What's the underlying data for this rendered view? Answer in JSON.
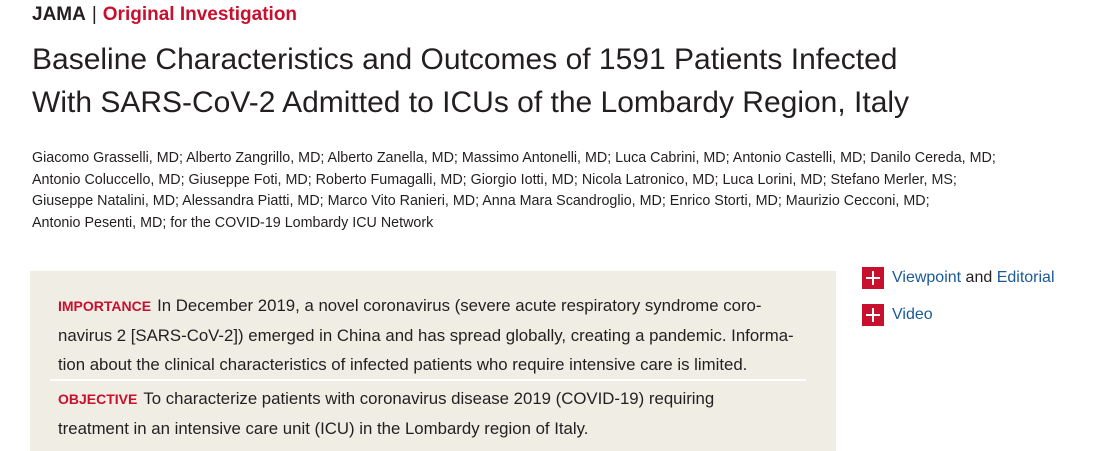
{
  "header": {
    "journal": "JAMA",
    "separator": "|",
    "section": "Original Investigation"
  },
  "title": {
    "lines": [
      "Baseline Characteristics and Outcomes of 1591 Patients Infected",
      "With SARS-CoV-2 Admitted to ICUs of the Lombardy Region, Italy"
    ]
  },
  "authors": {
    "lines": [
      "Giacomo Grasselli, MD; Alberto Zangrillo, MD; Alberto Zanella, MD; Massimo Antonelli, MD; Luca Cabrini, MD; Antonio Castelli, MD; Danilo Cereda, MD;",
      "Antonio Coluccello, MD; Giuseppe Foti, MD; Roberto Fumagalli, MD; Giorgio Iotti, MD; Nicola Latronico, MD; Luca Lorini, MD; Stefano Merler, MS;",
      "Giuseppe Natalini, MD; Alessandra Piatti, MD; Marco Vito Ranieri, MD; Anna Mara Scandroglio, MD; Enrico Storti, MD; Maurizio Cecconi, MD;",
      "Antonio Pesenti, MD; for the COVID-19 Lombardy ICU Network"
    ]
  },
  "abstract": {
    "importance": {
      "label": "IMPORTANCE",
      "lines": [
        "In December 2019, a novel coronavirus (severe acute respiratory syndrome coro-",
        "navirus 2 [SARS-CoV-2]) emerged in China and has spread globally, creating a pandemic. Informa-",
        "tion about the clinical characteristics of infected patients who require intensive care is limited."
      ]
    },
    "objective": {
      "label": "OBJECTIVE",
      "lines": [
        "To characterize patients with coronavirus disease 2019 (COVID-19) requiring",
        "treatment in an intensive care unit (ICU) in the Lombardy region of Italy."
      ]
    }
  },
  "sidebar": {
    "links": [
      {
        "items": [
          "Viewpoint",
          "and",
          "Editorial"
        ]
      },
      {
        "items": [
          "Video"
        ]
      }
    ]
  }
}
